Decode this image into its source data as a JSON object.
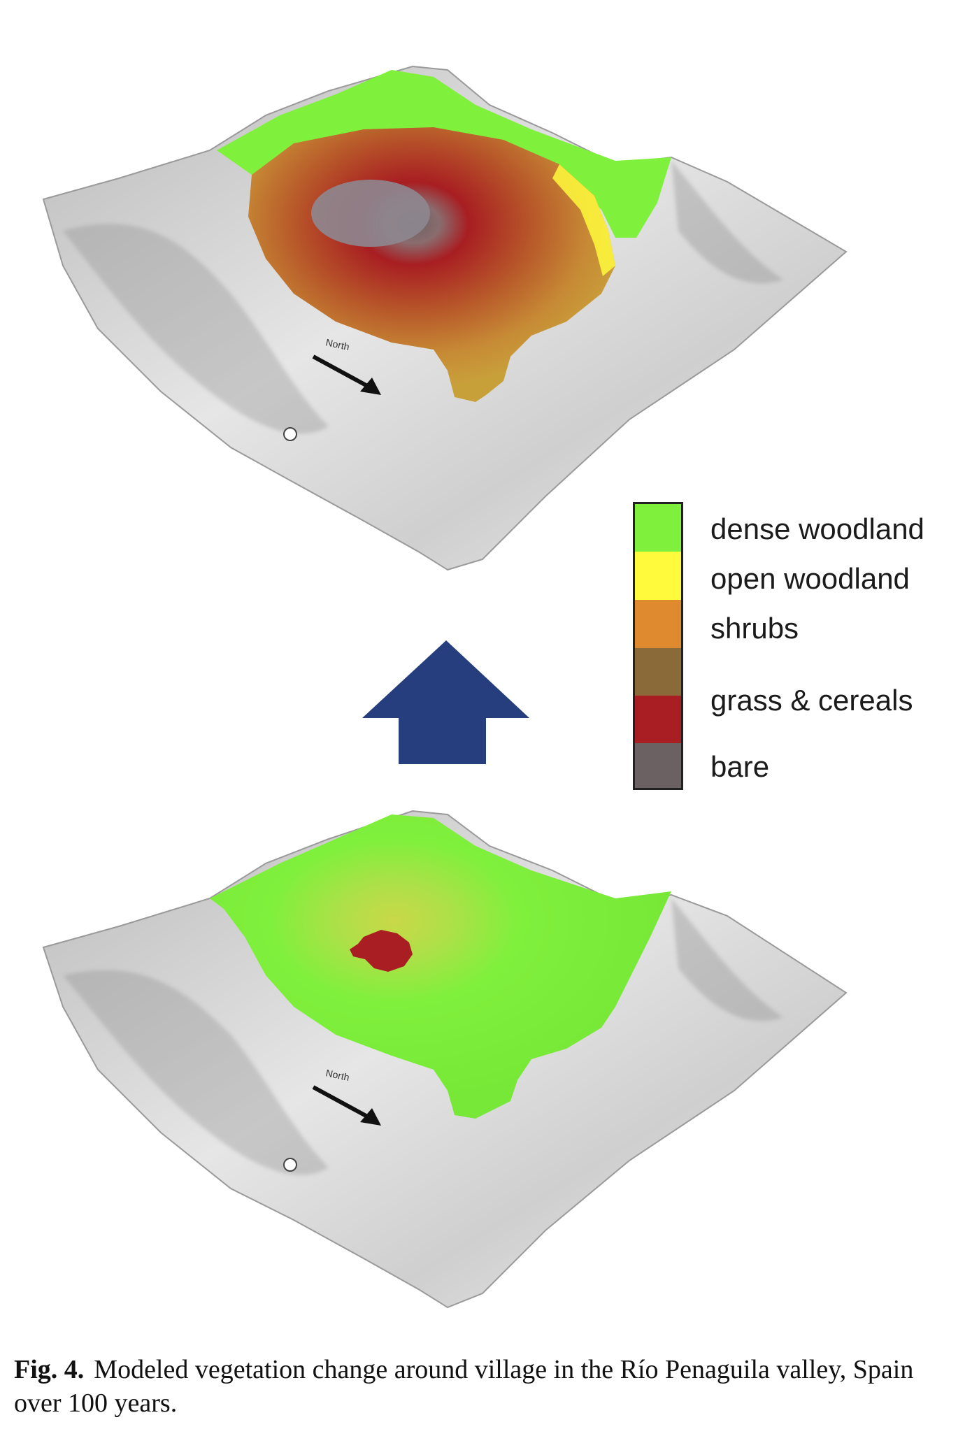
{
  "figure": {
    "label": "Fig. 4.",
    "caption": "Modeled vegetation change around village in the Río Penaguila valley, Spain over 100 years."
  },
  "legend": {
    "items": [
      {
        "label": "dense woodland",
        "color": "#7FF03C"
      },
      {
        "label": "open woodland",
        "color": "#FFFA3C"
      },
      {
        "label": "shrubs",
        "color": "#E08A30"
      },
      {
        "label": "grass & cereals",
        "color": "#8B6A3A"
      },
      {
        "label": "bare",
        "color": "#6B6163"
      }
    ],
    "extra_swatch_color": "#A81E22"
  },
  "maps": {
    "north_label": "North",
    "arrow_color": "#263E7E",
    "terrain_color": "#D9D9D9"
  }
}
